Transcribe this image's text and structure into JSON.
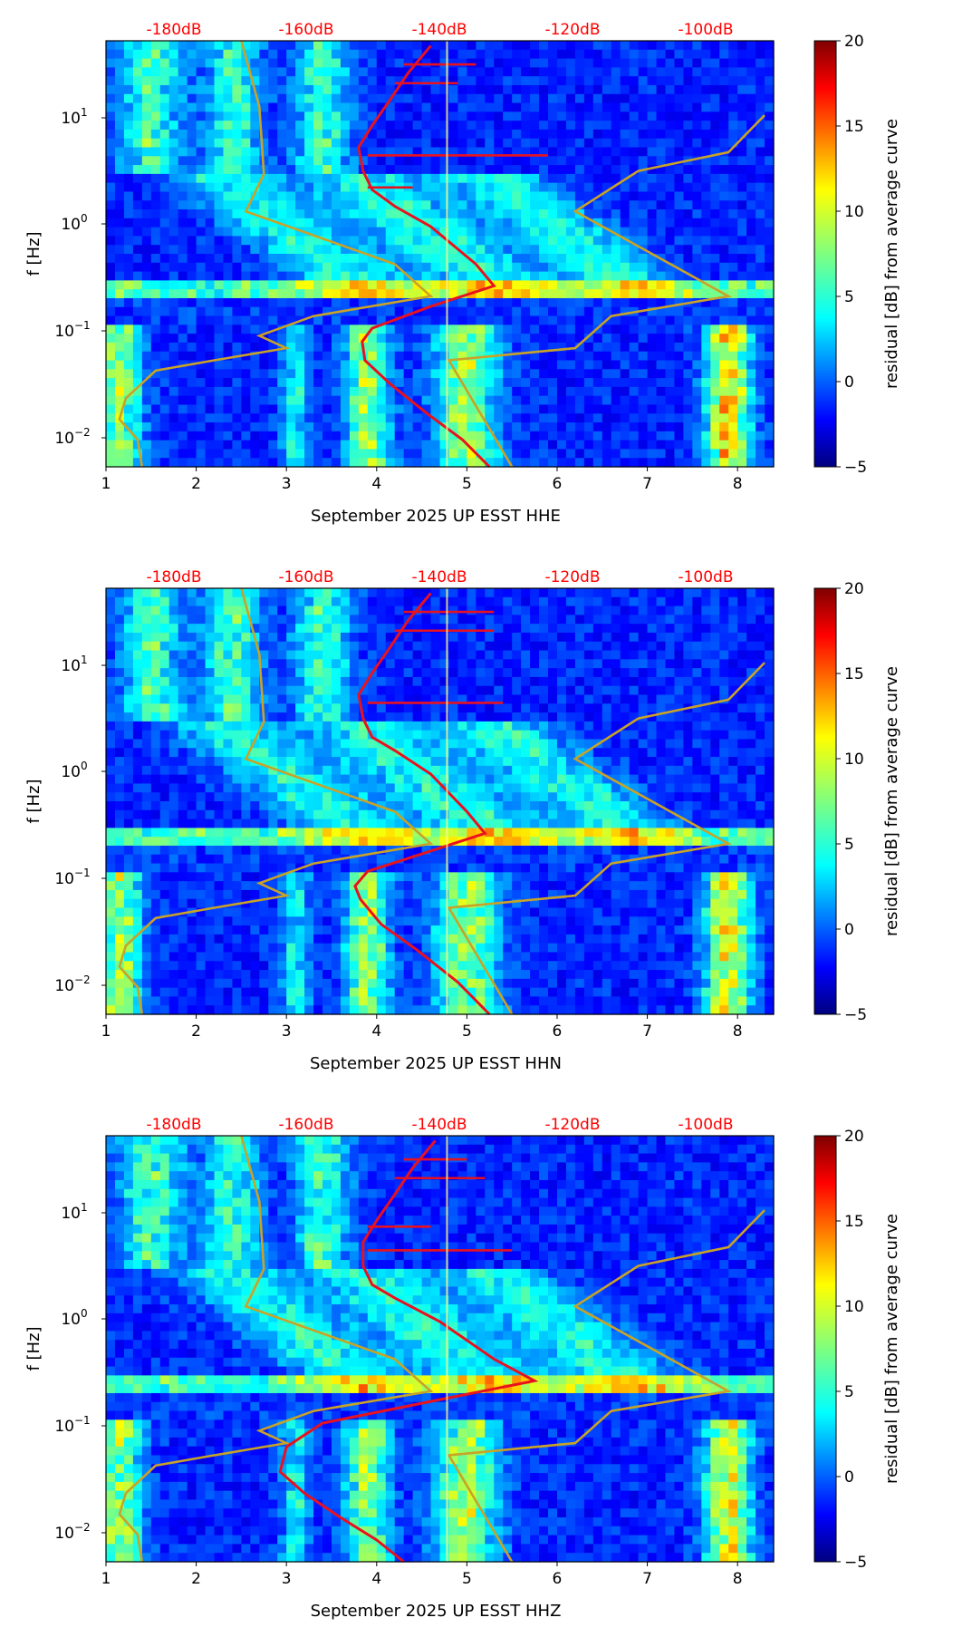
{
  "figure": {
    "chart_data": [
      {
        "type": "heatmap",
        "panel_id": "hhe",
        "xlabel": "September 2025 UP ESST  HHE",
        "ylabel": "f [Hz]",
        "x_ticks": [
          1,
          2,
          3,
          4,
          5,
          6,
          7,
          8
        ],
        "xlim": [
          1,
          8.4
        ],
        "ylim_hz": [
          0.005,
          50
        ],
        "y_tick_labels": [
          "10^-2",
          "10^-1",
          "10^0",
          "10^1"
        ],
        "y_tick_values": [
          0.01,
          0.1,
          1,
          10
        ],
        "top_axis_labels": [
          "-180dB",
          "-160dB",
          "-140dB",
          "-120dB",
          "-100dB"
        ],
        "top_axis_positions": [
          1.75,
          3.23,
          4.72,
          6.2,
          7.68
        ],
        "colorbar": {
          "label": "residual [dB] from average curve",
          "range": [
            -5,
            20
          ],
          "ticks": [
            20,
            15,
            10,
            5,
            0,
            -5
          ],
          "colormap": "jet"
        },
        "overlay_red_curve": [
          [
            5.25,
            0.005
          ],
          [
            4.95,
            0.009
          ],
          [
            4.55,
            0.016
          ],
          [
            4.15,
            0.03
          ],
          [
            3.87,
            0.05
          ],
          [
            3.84,
            0.075
          ],
          [
            3.95,
            0.1
          ],
          [
            4.6,
            0.16
          ],
          [
            5.3,
            0.25
          ],
          [
            5.1,
            0.4
          ],
          [
            4.6,
            0.9
          ],
          [
            4.2,
            1.4
          ],
          [
            3.95,
            2.0
          ],
          [
            3.85,
            3.0
          ],
          [
            3.8,
            5.0
          ],
          [
            3.95,
            8.0
          ],
          [
            4.15,
            14
          ],
          [
            4.35,
            25
          ],
          [
            4.6,
            45
          ]
        ],
        "overlay_red_spikes": [
          [
            3.9,
            2.1,
            4.4
          ],
          [
            3.9,
            4.2,
            5.9
          ],
          [
            4.2,
            20,
            4.9
          ],
          [
            4.3,
            30,
            5.1
          ]
        ],
        "overlay_gold_curves": [
          [
            [
              1.4,
              0.005
            ],
            [
              1.35,
              0.009
            ],
            [
              1.15,
              0.014
            ],
            [
              1.22,
              0.022
            ],
            [
              1.55,
              0.04
            ],
            [
              2.2,
              0.05
            ],
            [
              3.0,
              0.065
            ],
            [
              2.7,
              0.085
            ],
            [
              3.3,
              0.13
            ],
            [
              4.6,
              0.2
            ],
            [
              4.2,
              0.4
            ],
            [
              2.55,
              1.25
            ],
            [
              2.75,
              2.8
            ],
            [
              2.7,
              12
            ],
            [
              2.5,
              50
            ]
          ],
          [
            [
              5.5,
              0.005
            ],
            [
              4.8,
              0.05
            ],
            [
              6.2,
              0.065
            ],
            [
              6.6,
              0.13
            ],
            [
              7.9,
              0.2
            ],
            [
              6.2,
              1.25
            ],
            [
              6.9,
              3.0
            ],
            [
              7.9,
              4.5
            ],
            [
              8.3,
              10
            ]
          ]
        ],
        "vertical_line_x": 4.78
      },
      {
        "type": "heatmap",
        "panel_id": "hhn",
        "xlabel": "September 2025 UP ESST  HHN",
        "ylabel": "f [Hz]",
        "x_ticks": [
          1,
          2,
          3,
          4,
          5,
          6,
          7,
          8
        ],
        "xlim": [
          1,
          8.4
        ],
        "ylim_hz": [
          0.005,
          50
        ],
        "y_tick_labels": [
          "10^-2",
          "10^-1",
          "10^0",
          "10^1"
        ],
        "y_tick_values": [
          0.01,
          0.1,
          1,
          10
        ],
        "top_axis_labels": [
          "-180dB",
          "-160dB",
          "-140dB",
          "-120dB",
          "-100dB"
        ],
        "top_axis_positions": [
          1.75,
          3.23,
          4.72,
          6.2,
          7.68
        ],
        "colorbar": {
          "label": "residual [dB] from average curve",
          "range": [
            -5,
            20
          ],
          "ticks": [
            20,
            15,
            10,
            5,
            0,
            -5
          ],
          "colormap": "jet"
        },
        "overlay_red_curve": [
          [
            5.25,
            0.005
          ],
          [
            4.9,
            0.01
          ],
          [
            4.45,
            0.02
          ],
          [
            4.05,
            0.035
          ],
          [
            3.82,
            0.06
          ],
          [
            3.76,
            0.08
          ],
          [
            3.9,
            0.11
          ],
          [
            4.5,
            0.16
          ],
          [
            5.2,
            0.25
          ],
          [
            5.0,
            0.4
          ],
          [
            4.6,
            0.9
          ],
          [
            4.2,
            1.5
          ],
          [
            3.95,
            2.0
          ],
          [
            3.85,
            3.0
          ],
          [
            3.8,
            5.0
          ],
          [
            3.95,
            8.0
          ],
          [
            4.15,
            14
          ],
          [
            4.35,
            25
          ],
          [
            4.6,
            45
          ]
        ],
        "overlay_red_spikes": [
          [
            3.9,
            4.2,
            5.4
          ],
          [
            4.2,
            20,
            5.3
          ],
          [
            4.3,
            30,
            5.3
          ]
        ],
        "overlay_gold_curves": [
          [
            [
              1.4,
              0.005
            ],
            [
              1.35,
              0.009
            ],
            [
              1.15,
              0.014
            ],
            [
              1.22,
              0.022
            ],
            [
              1.55,
              0.04
            ],
            [
              2.2,
              0.05
            ],
            [
              3.0,
              0.065
            ],
            [
              2.7,
              0.085
            ],
            [
              3.3,
              0.13
            ],
            [
              4.6,
              0.2
            ],
            [
              4.2,
              0.4
            ],
            [
              2.55,
              1.25
            ],
            [
              2.75,
              2.8
            ],
            [
              2.7,
              12
            ],
            [
              2.5,
              50
            ]
          ],
          [
            [
              5.5,
              0.005
            ],
            [
              4.8,
              0.05
            ],
            [
              6.2,
              0.065
            ],
            [
              6.6,
              0.13
            ],
            [
              7.9,
              0.2
            ],
            [
              6.2,
              1.25
            ],
            [
              6.9,
              3.0
            ],
            [
              7.9,
              4.5
            ],
            [
              8.3,
              10
            ]
          ]
        ],
        "vertical_line_x": 4.78
      },
      {
        "type": "heatmap",
        "panel_id": "hhz",
        "xlabel": "September 2025 UP ESST  HHZ",
        "ylabel": "f [Hz]",
        "x_ticks": [
          1,
          2,
          3,
          4,
          5,
          6,
          7,
          8
        ],
        "xlim": [
          1,
          8.4
        ],
        "ylim_hz": [
          0.005,
          50
        ],
        "y_tick_labels": [
          "10^-2",
          "10^-1",
          "10^0",
          "10^1"
        ],
        "y_tick_values": [
          0.01,
          0.1,
          1,
          10
        ],
        "top_axis_labels": [
          "-180dB",
          "-160dB",
          "-140dB",
          "-120dB",
          "-100dB"
        ],
        "top_axis_positions": [
          1.75,
          3.23,
          4.72,
          6.2,
          7.68
        ],
        "colorbar": {
          "label": "residual [dB] from average curve",
          "range": [
            -5,
            20
          ],
          "ticks": [
            20,
            15,
            10,
            5,
            0,
            -5
          ],
          "colormap": "jet"
        },
        "overlay_red_curve": [
          [
            4.3,
            0.005
          ],
          [
            4.0,
            0.008
          ],
          [
            3.6,
            0.013
          ],
          [
            3.2,
            0.022
          ],
          [
            2.93,
            0.035
          ],
          [
            3.0,
            0.06
          ],
          [
            3.4,
            0.1
          ],
          [
            4.6,
            0.16
          ],
          [
            5.75,
            0.25
          ],
          [
            5.3,
            0.4
          ],
          [
            4.7,
            0.9
          ],
          [
            4.2,
            1.5
          ],
          [
            3.95,
            2.0
          ],
          [
            3.85,
            3.0
          ],
          [
            3.85,
            5.0
          ],
          [
            4.0,
            8.0
          ],
          [
            4.2,
            14
          ],
          [
            4.4,
            25
          ],
          [
            4.65,
            45
          ]
        ],
        "overlay_red_spikes": [
          [
            3.9,
            4.2,
            5.5
          ],
          [
            4.2,
            20,
            5.2
          ],
          [
            4.3,
            30,
            5.0
          ],
          [
            3.9,
            7,
            4.6
          ]
        ],
        "overlay_gold_curves": [
          [
            [
              1.4,
              0.005
            ],
            [
              1.35,
              0.009
            ],
            [
              1.15,
              0.014
            ],
            [
              1.22,
              0.022
            ],
            [
              1.55,
              0.04
            ],
            [
              2.2,
              0.05
            ],
            [
              3.0,
              0.065
            ],
            [
              2.7,
              0.085
            ],
            [
              3.3,
              0.13
            ],
            [
              4.6,
              0.2
            ],
            [
              4.2,
              0.4
            ],
            [
              2.55,
              1.25
            ],
            [
              2.75,
              2.8
            ],
            [
              2.7,
              12
            ],
            [
              2.5,
              50
            ]
          ],
          [
            [
              5.5,
              0.005
            ],
            [
              4.8,
              0.05
            ],
            [
              6.2,
              0.065
            ],
            [
              6.6,
              0.13
            ],
            [
              7.9,
              0.2
            ],
            [
              6.2,
              1.25
            ],
            [
              6.9,
              3.0
            ],
            [
              7.9,
              4.5
            ],
            [
              8.3,
              10
            ]
          ]
        ],
        "vertical_line_x": 4.78
      }
    ]
  }
}
